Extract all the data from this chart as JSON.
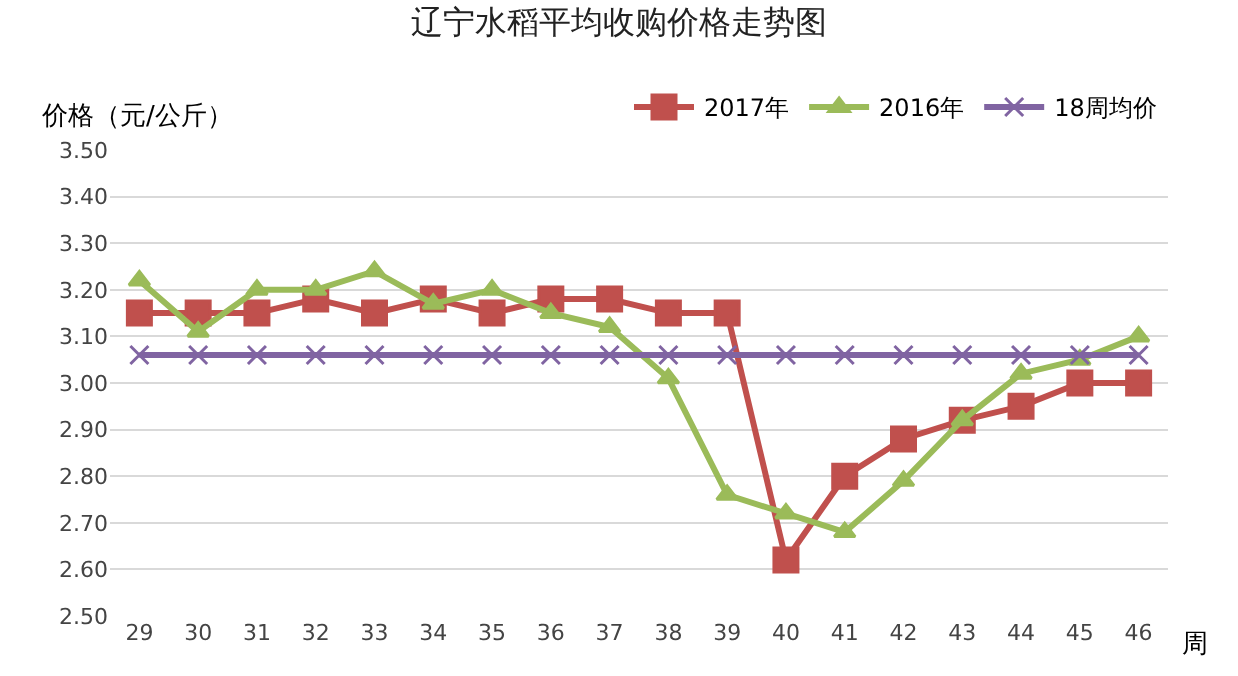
{
  "chart_data": {
    "type": "line",
    "title": "辽宁水稻平均收购价格走势图",
    "ylabel": "价格（元/公斤）",
    "xlabel": "周",
    "categories": [
      "29",
      "30",
      "31",
      "32",
      "33",
      "34",
      "35",
      "36",
      "37",
      "38",
      "39",
      "40",
      "41",
      "42",
      "43",
      "44",
      "45",
      "46"
    ],
    "series": [
      {
        "name": "2017年",
        "color": "#c0504d",
        "marker": "square",
        "values": [
          3.15,
          3.15,
          3.15,
          3.18,
          3.15,
          3.18,
          3.15,
          3.18,
          3.18,
          3.15,
          3.15,
          2.62,
          2.8,
          2.88,
          2.92,
          2.95,
          3.0,
          3.0
        ]
      },
      {
        "name": "2016年",
        "color": "#9bbb59",
        "marker": "triangle",
        "values": [
          3.22,
          3.11,
          3.2,
          3.2,
          3.24,
          3.17,
          3.2,
          3.15,
          3.12,
          3.01,
          2.76,
          2.72,
          2.68,
          2.79,
          2.92,
          3.02,
          3.05,
          3.1
        ]
      },
      {
        "name": "18周均价",
        "color": "#8064a2",
        "marker": "cross",
        "values": [
          3.06,
          3.06,
          3.06,
          3.06,
          3.06,
          3.06,
          3.06,
          3.06,
          3.06,
          3.06,
          3.06,
          3.06,
          3.06,
          3.06,
          3.06,
          3.06,
          3.06,
          3.06
        ]
      }
    ],
    "ylim": [
      2.5,
      3.5
    ],
    "yticks": [
      {
        "value": 2.5,
        "label": "2.50"
      },
      {
        "value": 2.6,
        "label": "2.60"
      },
      {
        "value": 2.7,
        "label": "2.70"
      },
      {
        "value": 2.8,
        "label": "2.80"
      },
      {
        "value": 2.9,
        "label": "2.90"
      },
      {
        "value": 3.0,
        "label": "3.00"
      },
      {
        "value": 3.1,
        "label": "3.10"
      },
      {
        "value": 3.2,
        "label": "3.20"
      },
      {
        "value": 3.3,
        "label": "3.30"
      },
      {
        "value": 3.4,
        "label": "3.40"
      },
      {
        "value": 3.5,
        "label": "3.50"
      }
    ],
    "grid": "y",
    "legend": "top right"
  }
}
